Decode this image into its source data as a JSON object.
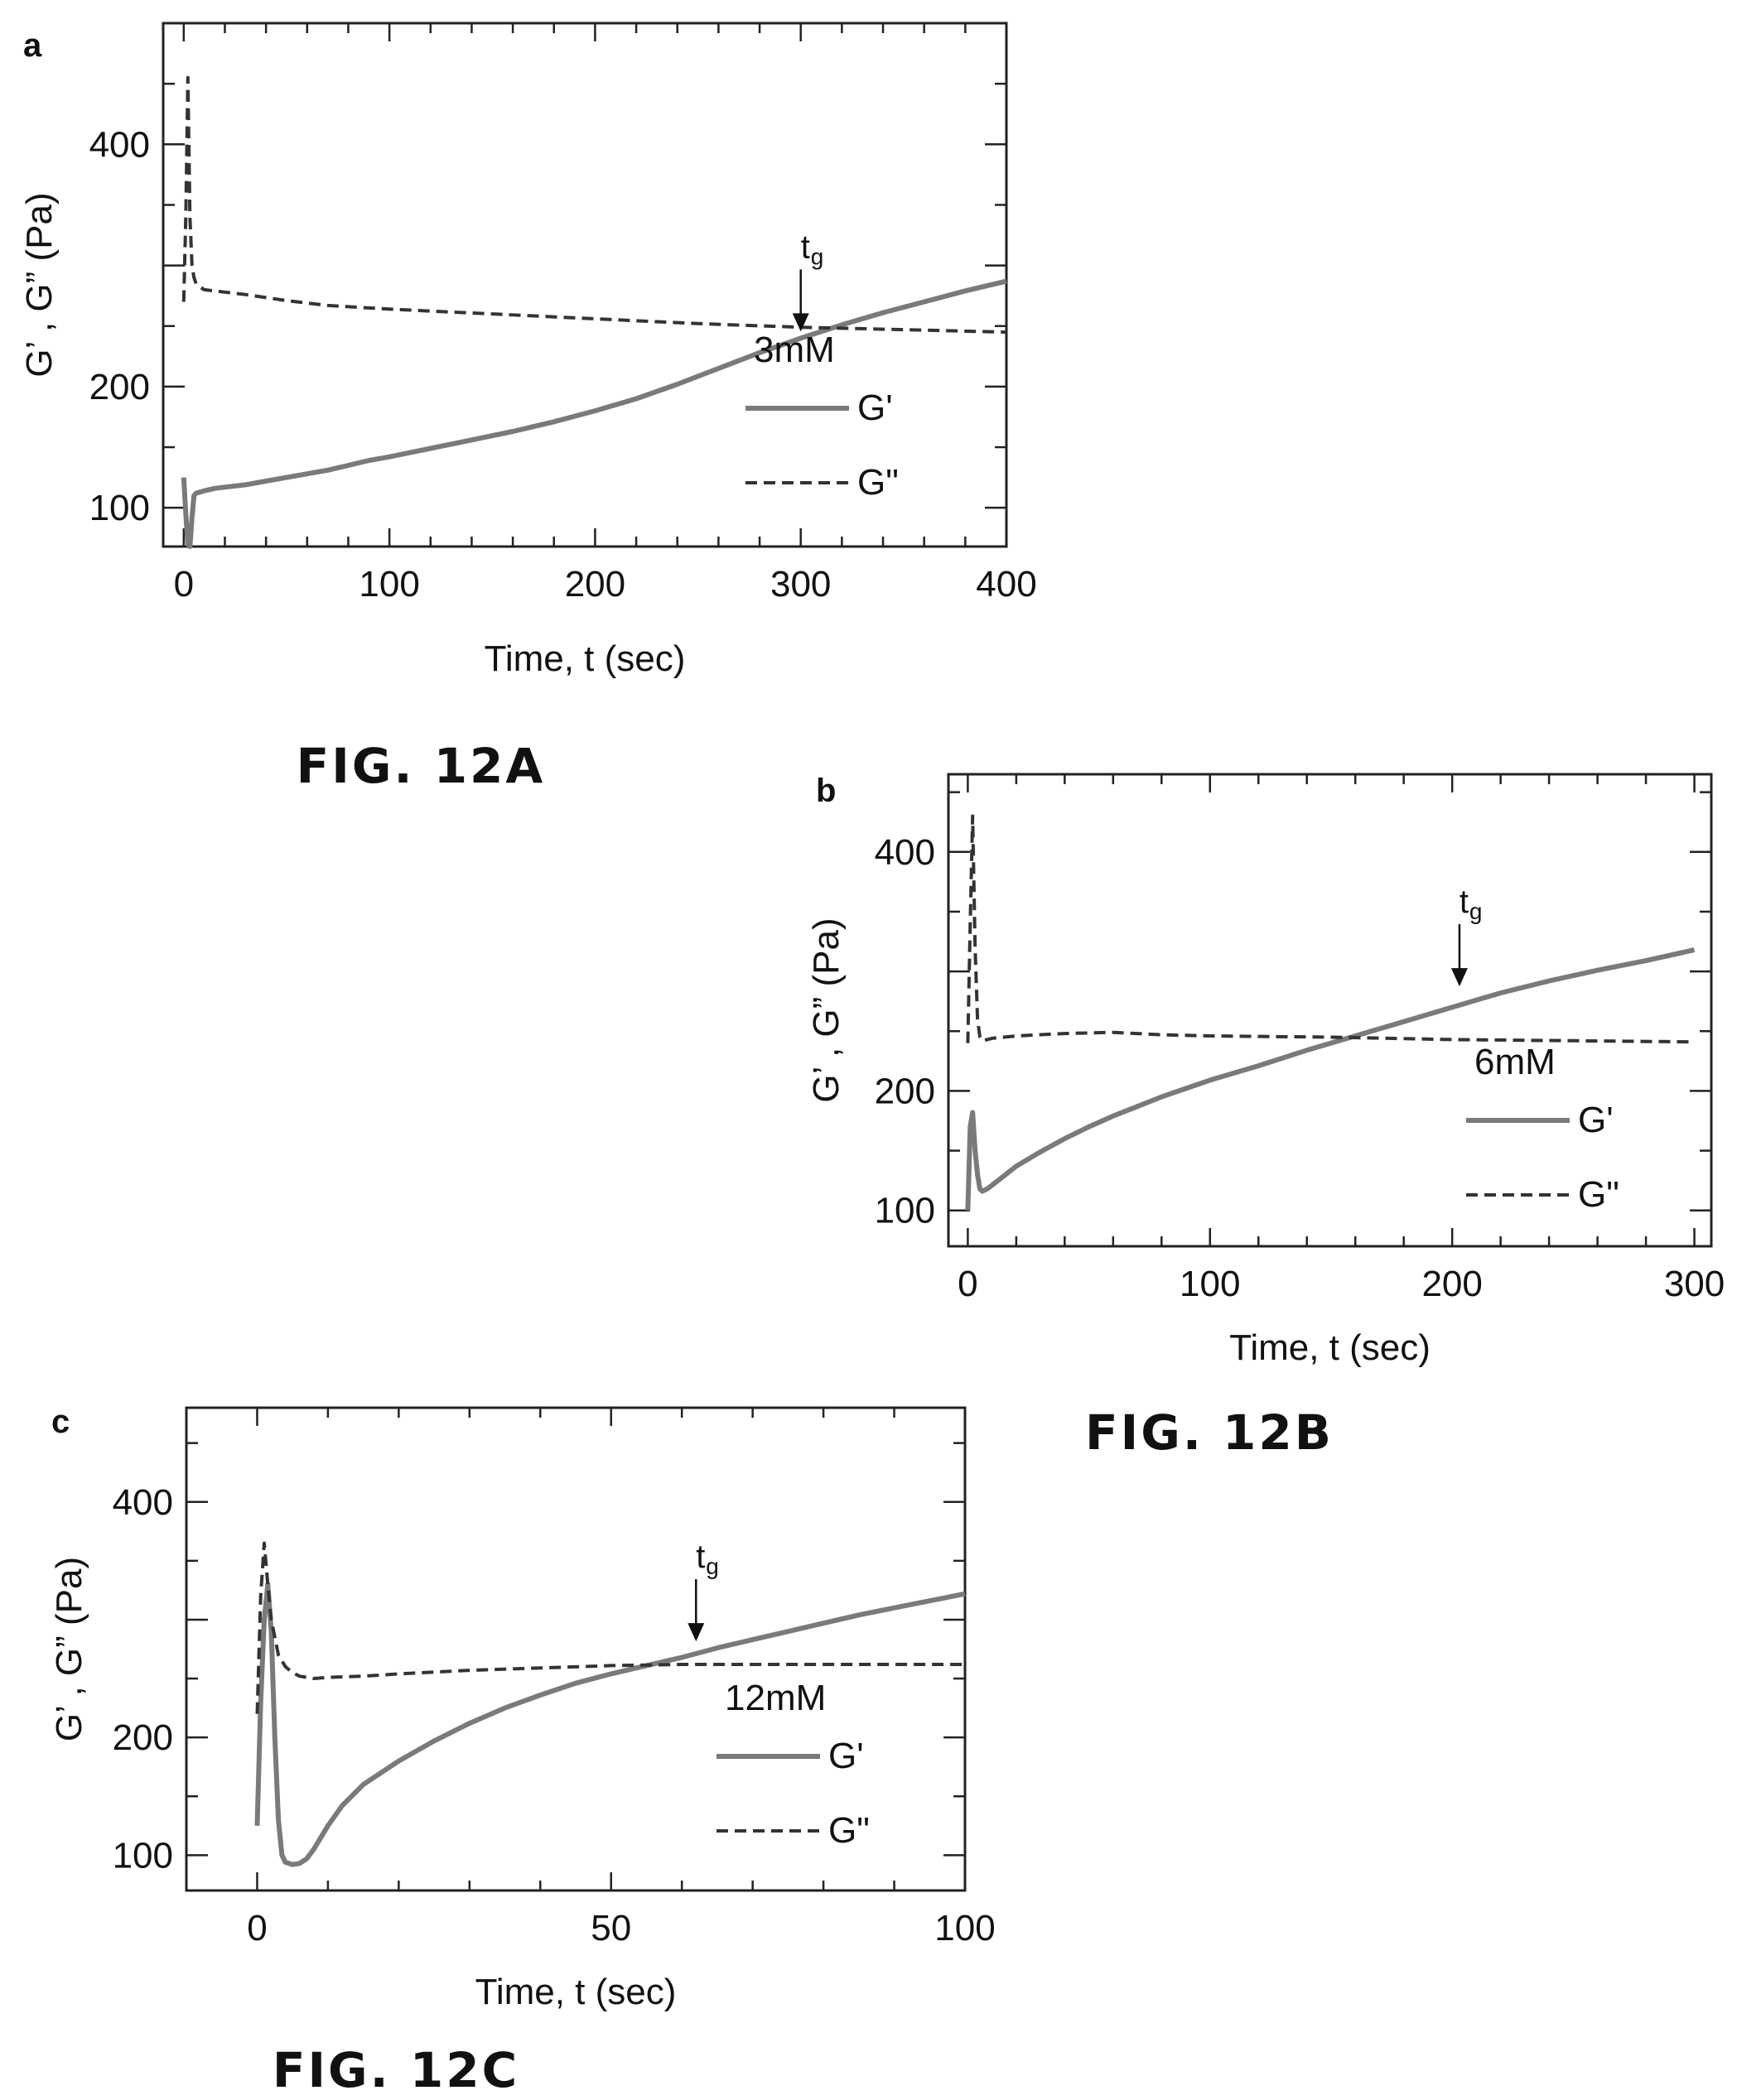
{
  "chart_data": [
    {
      "panel": "a",
      "figure_caption": "FIG. 12A",
      "type": "line",
      "xlabel": "Time, t (sec)",
      "ylabel": "G’ , G” (Pa)",
      "xlim": [
        -10,
        400
      ],
      "ylim": [
        68,
        500
      ],
      "xticks": [
        0,
        100,
        200,
        300,
        400
      ],
      "yticks": [
        100,
        200,
        300,
        400
      ],
      "ytick_labels": [
        "100",
        "200",
        "",
        "400"
      ],
      "legend_title": "3mM",
      "legend_position": "center-right",
      "gel_point_label": "tg",
      "gel_point_time": 300,
      "grid": false,
      "series": [
        {
          "name": "G'",
          "style": "solid",
          "x": [
            0,
            1,
            2,
            3,
            4,
            5,
            6,
            8,
            10,
            15,
            20,
            30,
            40,
            50,
            60,
            70,
            80,
            90,
            100,
            120,
            140,
            160,
            180,
            200,
            220,
            240,
            260,
            280,
            300,
            320,
            340,
            360,
            380,
            400
          ],
          "y": [
            125,
            95,
            70,
            68,
            92,
            110,
            112,
            113,
            114,
            116,
            117,
            119,
            122,
            125,
            128,
            131,
            135,
            139,
            142,
            149,
            156,
            163,
            171,
            180,
            190,
            202,
            215,
            228,
            240,
            251,
            261,
            270,
            279,
            287
          ]
        },
        {
          "name": "G\"",
          "style": "dashed",
          "x": [
            0,
            1,
            2,
            3,
            4,
            5,
            6,
            8,
            10,
            15,
            20,
            30,
            50,
            70,
            100,
            150,
            200,
            250,
            300,
            350,
            400
          ],
          "y": [
            270,
            340,
            455,
            340,
            300,
            290,
            285,
            282,
            280,
            279,
            278,
            276,
            271,
            267,
            264,
            260,
            256,
            252,
            249,
            247,
            245
          ]
        }
      ]
    },
    {
      "panel": "b",
      "figure_caption": "FIG. 12B",
      "type": "line",
      "xlabel": "Time, t (sec)",
      "ylabel": "G’ , G” (Pa)",
      "xlim": [
        -8,
        307
      ],
      "ylim": [
        70,
        465
      ],
      "xticks": [
        0,
        100,
        200,
        300
      ],
      "yticks": [
        100,
        200,
        300,
        400
      ],
      "ytick_labels": [
        "100",
        "200",
        "",
        "400"
      ],
      "legend_title": "6mM",
      "legend_position": "center-right",
      "gel_point_label": "tg",
      "gel_point_time": 203,
      "grid": false,
      "series": [
        {
          "name": "G'",
          "style": "solid",
          "x": [
            0,
            1,
            2,
            3,
            4,
            5,
            6,
            8,
            10,
            15,
            20,
            30,
            40,
            50,
            60,
            70,
            80,
            90,
            100,
            120,
            140,
            160,
            180,
            200,
            220,
            240,
            260,
            280,
            300
          ],
          "y": [
            100,
            170,
            182,
            150,
            130,
            118,
            116,
            118,
            121,
            129,
            137,
            149,
            160,
            170,
            179,
            187,
            195,
            202,
            209,
            221,
            234,
            246,
            258,
            270,
            282,
            292,
            301,
            309,
            318
          ]
        },
        {
          "name": "G\"",
          "style": "dashed",
          "x": [
            0,
            1,
            2,
            3,
            4,
            5,
            6,
            8,
            10,
            20,
            40,
            60,
            80,
            100,
            150,
            200,
            250,
            300
          ],
          "y": [
            240,
            340,
            430,
            320,
            260,
            245,
            242,
            243,
            244,
            246,
            248,
            249,
            247,
            246,
            245,
            243,
            242,
            241
          ]
        }
      ]
    },
    {
      "panel": "c",
      "figure_caption": "FIG. 12C",
      "type": "line",
      "xlabel": "Time, t (sec)",
      "ylabel": "G’ , G” (Pa)",
      "xlim": [
        -10,
        100
      ],
      "ylim": [
        70,
        480
      ],
      "xticks": [
        0,
        50,
        100
      ],
      "yticks": [
        100,
        200,
        300,
        400
      ],
      "ytick_labels": [
        "100",
        "200",
        "",
        "400"
      ],
      "legend_title": "12mM",
      "legend_position": "center-right",
      "gel_point_label": "tg",
      "gel_point_time": 62,
      "grid": false,
      "series": [
        {
          "name": "G'",
          "style": "solid",
          "x": [
            0,
            0.5,
            1,
            1.5,
            2,
            2.5,
            3,
            3.5,
            4,
            5,
            6,
            7,
            8,
            10,
            12,
            15,
            20,
            25,
            30,
            35,
            40,
            45,
            50,
            55,
            60,
            65,
            70,
            75,
            80,
            85,
            90,
            95,
            100
          ],
          "y": [
            125,
            230,
            300,
            330,
            290,
            200,
            130,
            100,
            94,
            92,
            93,
            97,
            105,
            125,
            142,
            160,
            180,
            197,
            212,
            225,
            236,
            246,
            254,
            261,
            268,
            276,
            283,
            290,
            297,
            304,
            310,
            316,
            322
          ]
        },
        {
          "name": "G\"",
          "style": "dashed",
          "x": [
            0,
            0.5,
            1,
            1.5,
            2,
            2.5,
            3,
            4,
            5,
            6,
            8,
            10,
            15,
            20,
            30,
            40,
            50,
            60,
            70,
            80,
            90,
            100
          ],
          "y": [
            220,
            320,
            365,
            330,
            300,
            285,
            270,
            260,
            255,
            252,
            250,
            251,
            252,
            254,
            257,
            259,
            261,
            262,
            262,
            262,
            262,
            262
          ]
        }
      ]
    }
  ]
}
